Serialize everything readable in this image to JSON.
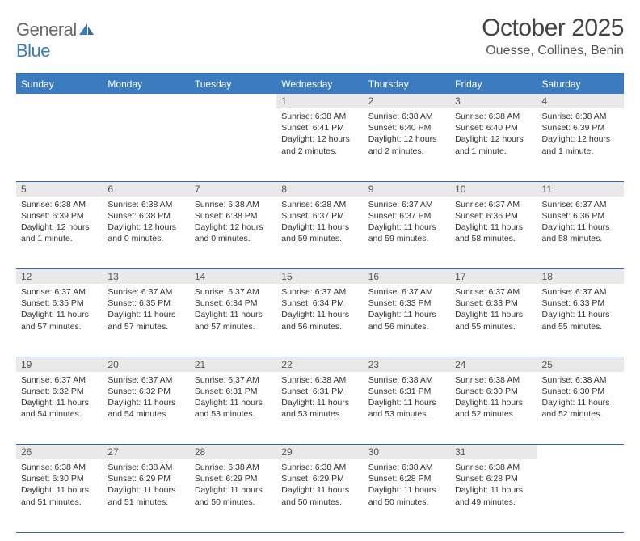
{
  "brand": {
    "part1": "General",
    "part2": "Blue"
  },
  "title": "October 2025",
  "location": "Ouesse, Collines, Benin",
  "colors": {
    "header_bg": "#3b7bbf",
    "rule": "#2f6aa8",
    "daynum_bg": "#e9e9e9",
    "text": "#333333",
    "logo_gray": "#6b6b6b",
    "logo_blue": "#3b7bbf"
  },
  "day_headers": [
    "Sunday",
    "Monday",
    "Tuesday",
    "Wednesday",
    "Thursday",
    "Friday",
    "Saturday"
  ],
  "weeks": [
    [
      null,
      null,
      null,
      {
        "n": "1",
        "sr": "Sunrise: 6:38 AM",
        "ss": "Sunset: 6:41 PM",
        "dl": "Daylight: 12 hours and 2 minutes."
      },
      {
        "n": "2",
        "sr": "Sunrise: 6:38 AM",
        "ss": "Sunset: 6:40 PM",
        "dl": "Daylight: 12 hours and 2 minutes."
      },
      {
        "n": "3",
        "sr": "Sunrise: 6:38 AM",
        "ss": "Sunset: 6:40 PM",
        "dl": "Daylight: 12 hours and 1 minute."
      },
      {
        "n": "4",
        "sr": "Sunrise: 6:38 AM",
        "ss": "Sunset: 6:39 PM",
        "dl": "Daylight: 12 hours and 1 minute."
      }
    ],
    [
      {
        "n": "5",
        "sr": "Sunrise: 6:38 AM",
        "ss": "Sunset: 6:39 PM",
        "dl": "Daylight: 12 hours and 1 minute."
      },
      {
        "n": "6",
        "sr": "Sunrise: 6:38 AM",
        "ss": "Sunset: 6:38 PM",
        "dl": "Daylight: 12 hours and 0 minutes."
      },
      {
        "n": "7",
        "sr": "Sunrise: 6:38 AM",
        "ss": "Sunset: 6:38 PM",
        "dl": "Daylight: 12 hours and 0 minutes."
      },
      {
        "n": "8",
        "sr": "Sunrise: 6:38 AM",
        "ss": "Sunset: 6:37 PM",
        "dl": "Daylight: 11 hours and 59 minutes."
      },
      {
        "n": "9",
        "sr": "Sunrise: 6:37 AM",
        "ss": "Sunset: 6:37 PM",
        "dl": "Daylight: 11 hours and 59 minutes."
      },
      {
        "n": "10",
        "sr": "Sunrise: 6:37 AM",
        "ss": "Sunset: 6:36 PM",
        "dl": "Daylight: 11 hours and 58 minutes."
      },
      {
        "n": "11",
        "sr": "Sunrise: 6:37 AM",
        "ss": "Sunset: 6:36 PM",
        "dl": "Daylight: 11 hours and 58 minutes."
      }
    ],
    [
      {
        "n": "12",
        "sr": "Sunrise: 6:37 AM",
        "ss": "Sunset: 6:35 PM",
        "dl": "Daylight: 11 hours and 57 minutes."
      },
      {
        "n": "13",
        "sr": "Sunrise: 6:37 AM",
        "ss": "Sunset: 6:35 PM",
        "dl": "Daylight: 11 hours and 57 minutes."
      },
      {
        "n": "14",
        "sr": "Sunrise: 6:37 AM",
        "ss": "Sunset: 6:34 PM",
        "dl": "Daylight: 11 hours and 57 minutes."
      },
      {
        "n": "15",
        "sr": "Sunrise: 6:37 AM",
        "ss": "Sunset: 6:34 PM",
        "dl": "Daylight: 11 hours and 56 minutes."
      },
      {
        "n": "16",
        "sr": "Sunrise: 6:37 AM",
        "ss": "Sunset: 6:33 PM",
        "dl": "Daylight: 11 hours and 56 minutes."
      },
      {
        "n": "17",
        "sr": "Sunrise: 6:37 AM",
        "ss": "Sunset: 6:33 PM",
        "dl": "Daylight: 11 hours and 55 minutes."
      },
      {
        "n": "18",
        "sr": "Sunrise: 6:37 AM",
        "ss": "Sunset: 6:33 PM",
        "dl": "Daylight: 11 hours and 55 minutes."
      }
    ],
    [
      {
        "n": "19",
        "sr": "Sunrise: 6:37 AM",
        "ss": "Sunset: 6:32 PM",
        "dl": "Daylight: 11 hours and 54 minutes."
      },
      {
        "n": "20",
        "sr": "Sunrise: 6:37 AM",
        "ss": "Sunset: 6:32 PM",
        "dl": "Daylight: 11 hours and 54 minutes."
      },
      {
        "n": "21",
        "sr": "Sunrise: 6:37 AM",
        "ss": "Sunset: 6:31 PM",
        "dl": "Daylight: 11 hours and 53 minutes."
      },
      {
        "n": "22",
        "sr": "Sunrise: 6:38 AM",
        "ss": "Sunset: 6:31 PM",
        "dl": "Daylight: 11 hours and 53 minutes."
      },
      {
        "n": "23",
        "sr": "Sunrise: 6:38 AM",
        "ss": "Sunset: 6:31 PM",
        "dl": "Daylight: 11 hours and 53 minutes."
      },
      {
        "n": "24",
        "sr": "Sunrise: 6:38 AM",
        "ss": "Sunset: 6:30 PM",
        "dl": "Daylight: 11 hours and 52 minutes."
      },
      {
        "n": "25",
        "sr": "Sunrise: 6:38 AM",
        "ss": "Sunset: 6:30 PM",
        "dl": "Daylight: 11 hours and 52 minutes."
      }
    ],
    [
      {
        "n": "26",
        "sr": "Sunrise: 6:38 AM",
        "ss": "Sunset: 6:30 PM",
        "dl": "Daylight: 11 hours and 51 minutes."
      },
      {
        "n": "27",
        "sr": "Sunrise: 6:38 AM",
        "ss": "Sunset: 6:29 PM",
        "dl": "Daylight: 11 hours and 51 minutes."
      },
      {
        "n": "28",
        "sr": "Sunrise: 6:38 AM",
        "ss": "Sunset: 6:29 PM",
        "dl": "Daylight: 11 hours and 50 minutes."
      },
      {
        "n": "29",
        "sr": "Sunrise: 6:38 AM",
        "ss": "Sunset: 6:29 PM",
        "dl": "Daylight: 11 hours and 50 minutes."
      },
      {
        "n": "30",
        "sr": "Sunrise: 6:38 AM",
        "ss": "Sunset: 6:28 PM",
        "dl": "Daylight: 11 hours and 50 minutes."
      },
      {
        "n": "31",
        "sr": "Sunrise: 6:38 AM",
        "ss": "Sunset: 6:28 PM",
        "dl": "Daylight: 11 hours and 49 minutes."
      },
      null
    ]
  ]
}
